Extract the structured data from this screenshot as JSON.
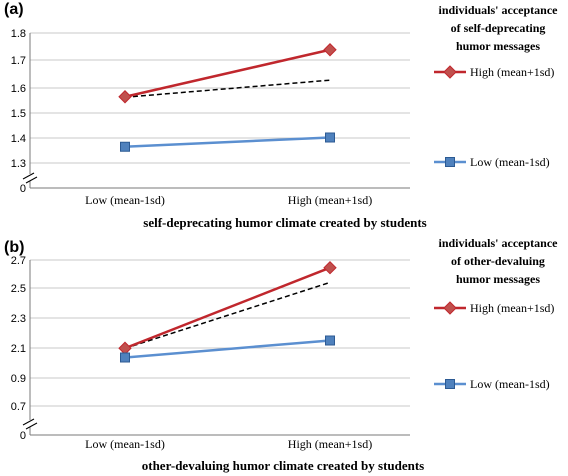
{
  "colors": {
    "high": "#c0272d",
    "low": "#5b8fd0",
    "slope": "#000000",
    "grid": "#c9c9c9",
    "axis": "#7a7a7a",
    "low_marker_fill": "#4f81bd",
    "low_marker_edge": "#2c5a93",
    "high_marker_fill": "#c0504d"
  },
  "chart_data": [
    {
      "type": "line",
      "panel_label": "(a)",
      "xlabel": "self-deprecating humor climate created by students",
      "categories": [
        "Low (mean-1sd)",
        "High (mean+1sd)"
      ],
      "y_ticks": [
        "0",
        "1.3",
        "1.4",
        "1.5",
        "1.6",
        "1.7",
        "1.8"
      ],
      "axis_break": true,
      "grid": true,
      "legend_position": "right",
      "legend_title": [
        "individuals' acceptance",
        "of self-deprecating",
        "humor messages"
      ],
      "series": [
        {
          "name": "High (mean+1sd)",
          "values": [
            1.565,
            1.738
          ],
          "marker": "diamond",
          "color_key": "high"
        },
        {
          "name": "Low (mean-1sd)",
          "values": [
            1.365,
            1.402
          ],
          "marker": "square",
          "color_key": "low"
        }
      ],
      "reference_line": {
        "style": "dashed",
        "values": [
          1.563,
          1.628
        ]
      }
    },
    {
      "type": "line",
      "panel_label": "(b)",
      "xlabel": "other-devaluing humor climate created by students",
      "categories": [
        "Low (mean-1sd)",
        "High (mean+1sd)"
      ],
      "y_ticks": [
        "0",
        "0.7",
        "0.9",
        "2.1",
        "2.3",
        "2.5",
        "2.7"
      ],
      "axis_break": true,
      "grid": true,
      "legend_position": "right",
      "legend_title": [
        "individuals' acceptance",
        "of other-devaluing",
        "humor messages"
      ],
      "series": [
        {
          "name": "High (mean+1sd)",
          "values": [
            2.09,
            2.645
          ],
          "marker": "diamond",
          "color_key": "high"
        },
        {
          "name": "Low (mean-1sd)",
          "values": [
            1.72,
            2.15
          ],
          "marker": "square",
          "color_key": "low"
        }
      ],
      "reference_line": {
        "style": "dashed",
        "values": [
          2.085,
          2.54
        ]
      }
    }
  ]
}
